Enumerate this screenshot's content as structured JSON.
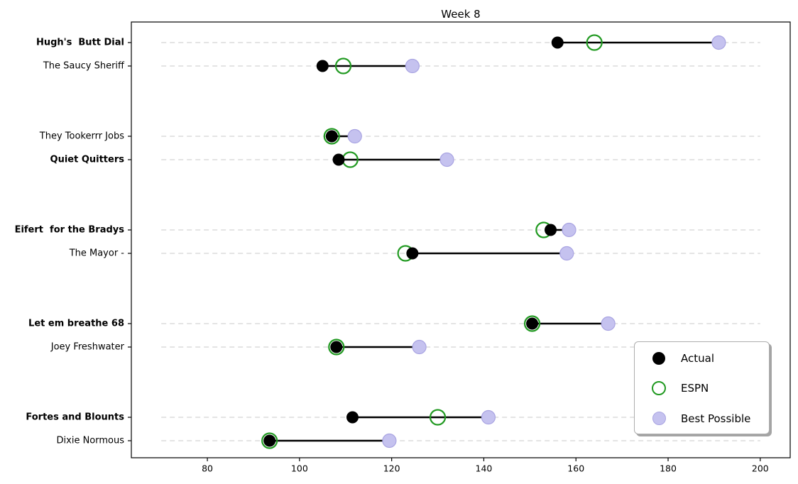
{
  "chart_data": {
    "type": "scatter",
    "variant": "dumbbell",
    "title": "Week 8",
    "xlabel": "",
    "ylabel": "",
    "xlim": [
      63.5,
      206.5
    ],
    "xticks": [
      80,
      100,
      120,
      140,
      160,
      180,
      200
    ],
    "grid": "horizontal-dashed",
    "gridline_span": [
      70,
      200
    ],
    "legend": {
      "position": "lower right",
      "items": [
        {
          "label": "Actual",
          "marker": "filled-circle",
          "color": "#000000",
          "edge": "#000000"
        },
        {
          "label": "ESPN",
          "marker": "open-circle",
          "color": "#229a22",
          "edge": "#229a22"
        },
        {
          "label": "Best Possible",
          "marker": "filled-circle",
          "color": "#c5c2ef",
          "edge": "#a9a4e2"
        }
      ]
    },
    "series_names": [
      "Actual",
      "ESPN",
      "Best Possible"
    ],
    "teams": [
      {
        "label": "Hugh's  Butt Dial",
        "bold": true,
        "actual": 156,
        "espn": 164,
        "best": 191
      },
      {
        "label": "The Saucy Sheriff",
        "bold": false,
        "actual": 105,
        "espn": 109.5,
        "best": 124.5
      },
      {
        "label": "They Tookerrr Jobs",
        "bold": false,
        "actual": 107,
        "espn": 107,
        "best": 112
      },
      {
        "label": "Quiet Quitters",
        "bold": true,
        "actual": 108.5,
        "espn": 111,
        "best": 132
      },
      {
        "label": "Eifert  for the Bradys",
        "bold": true,
        "actual": 154.5,
        "espn": 153,
        "best": 158.5
      },
      {
        "label": "The Mayor -",
        "bold": false,
        "actual": 124.5,
        "espn": 123,
        "best": 158
      },
      {
        "label": "Let em breathe 68",
        "bold": true,
        "actual": 150.5,
        "espn": 150.5,
        "best": 167
      },
      {
        "label": "Joey Freshwater",
        "bold": false,
        "actual": 108,
        "espn": 108,
        "best": 126
      },
      {
        "label": "Fortes and Blounts",
        "bold": true,
        "actual": 111.5,
        "espn": 130,
        "best": 141
      },
      {
        "label": "Dixie Normous",
        "bold": false,
        "actual": 93.5,
        "espn": 93.5,
        "best": 119.5
      }
    ]
  },
  "colors": {
    "actual": "#000000",
    "espn": "#229a22",
    "best_fill": "#c5c2ef",
    "best_edge": "#a9a4e2",
    "gridline": "#dbdbdb",
    "spine": "#000000",
    "background": "#ffffff",
    "connector": "#000000"
  }
}
